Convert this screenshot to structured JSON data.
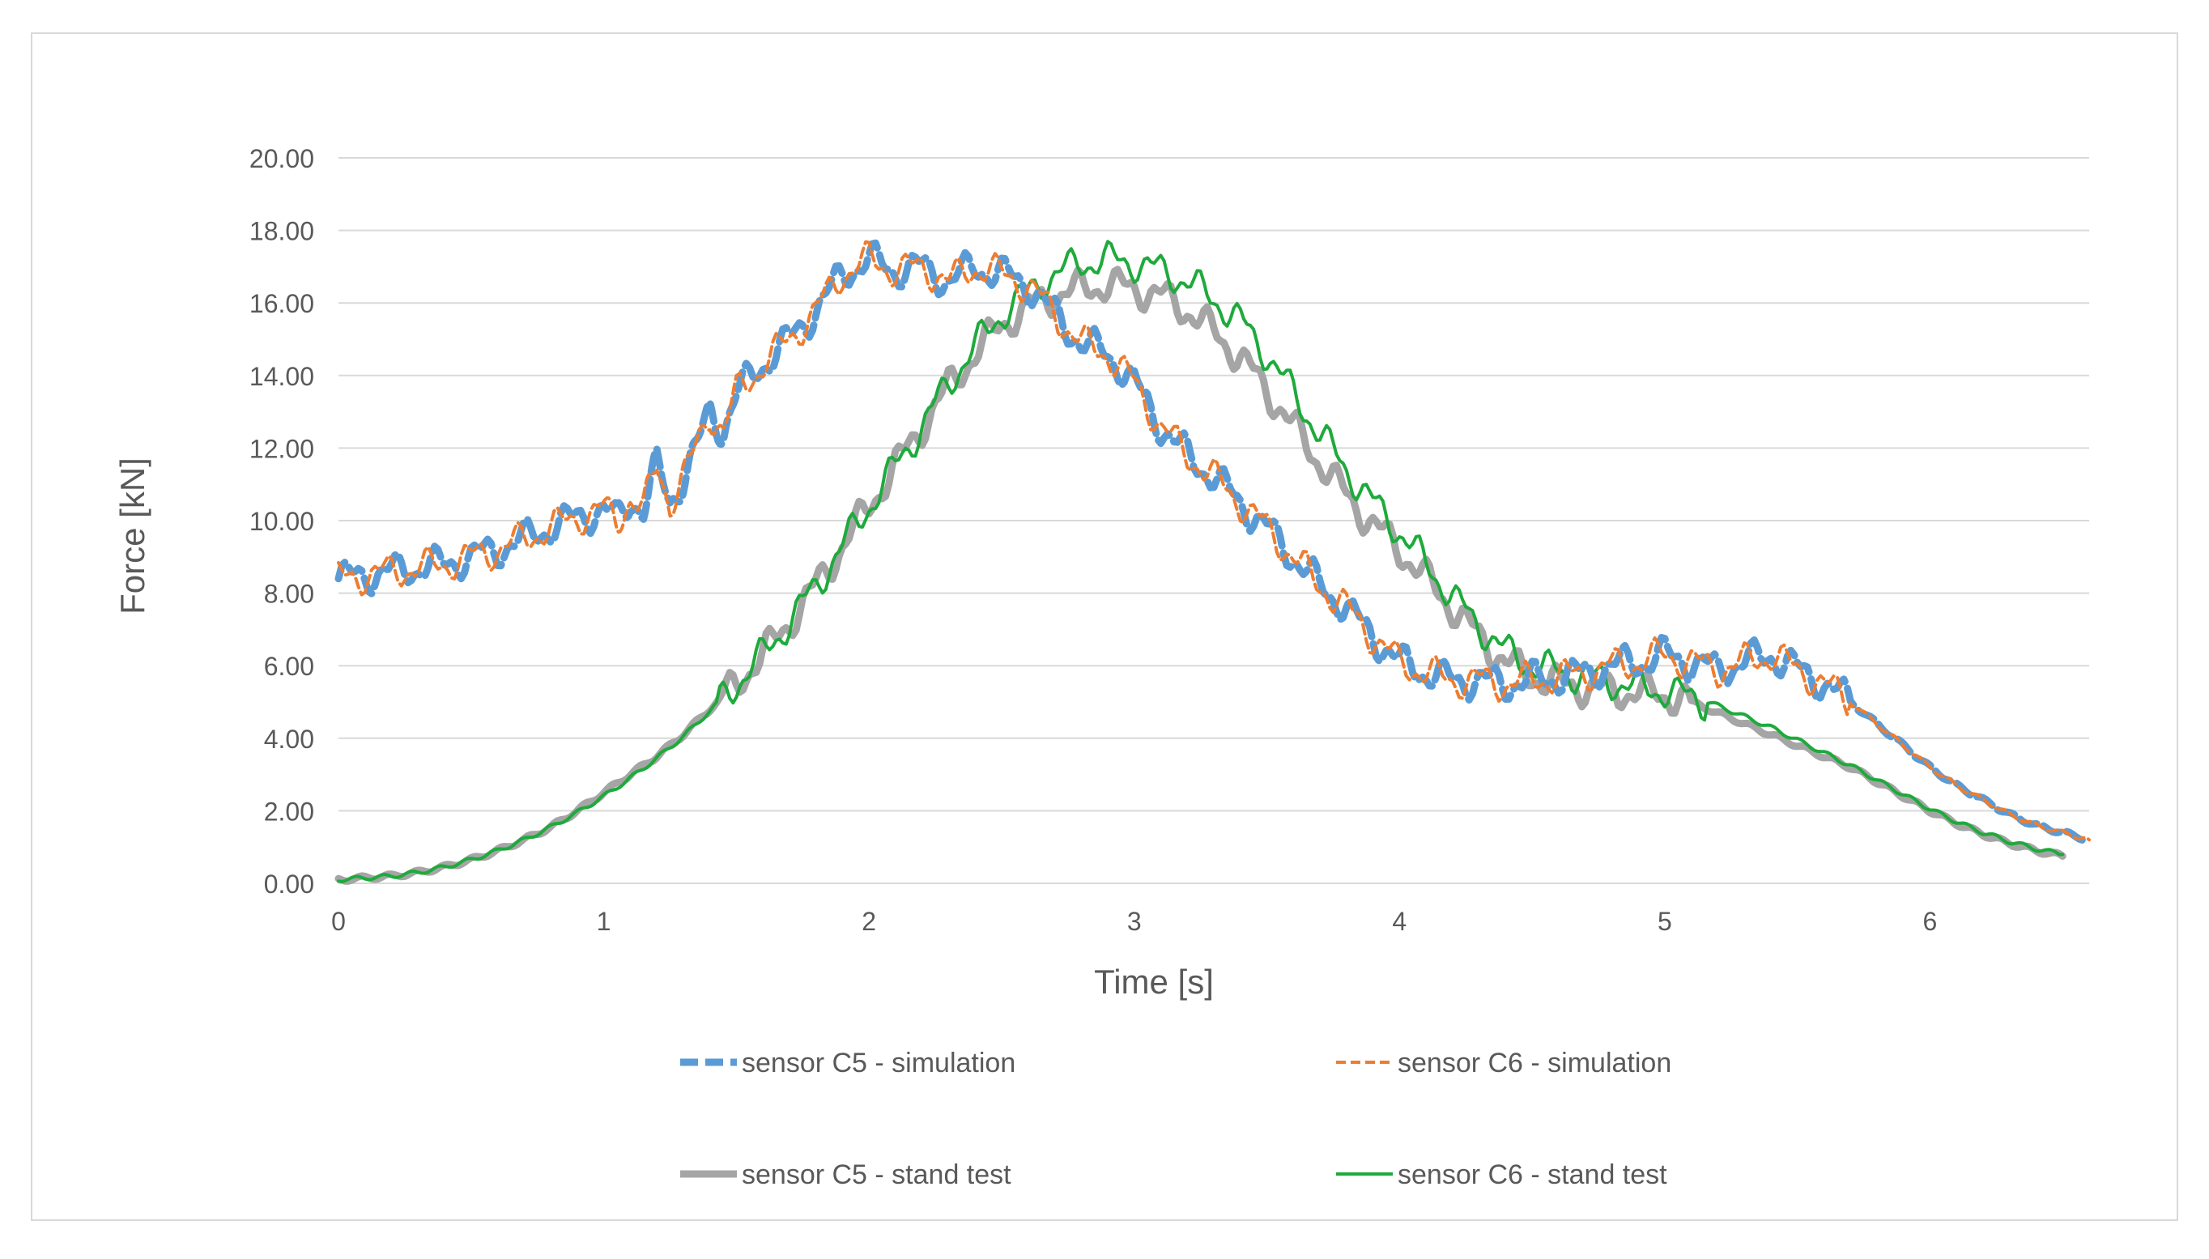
{
  "chart_data": {
    "type": "line",
    "title": "",
    "xlabel": "Time [s]",
    "ylabel": "Force [kN]",
    "xlim": [
      0,
      6.6
    ],
    "ylim": [
      0,
      20
    ],
    "x_ticks": [
      "0",
      "1",
      "2",
      "3",
      "4",
      "5",
      "6"
    ],
    "y_ticks": [
      "0.00",
      "2.00",
      "4.00",
      "6.00",
      "8.00",
      "10.00",
      "12.00",
      "14.00",
      "16.00",
      "18.00",
      "20.00"
    ],
    "grid": "horizontal",
    "legend_position": "bottom",
    "series": [
      {
        "name": "sensor C5 - simulation",
        "color": "#5B9BD5",
        "style": "dashed-thick",
        "x": [
          0,
          0.1,
          0.2,
          0.3,
          0.4,
          0.5,
          0.6,
          0.7,
          0.8,
          0.9,
          1.0,
          1.05,
          1.1,
          1.15,
          1.2,
          1.25,
          1.3,
          1.35,
          1.4,
          1.45,
          1.5,
          1.6,
          1.7,
          1.8,
          1.9,
          2.0,
          2.1,
          2.2,
          2.3,
          2.4,
          2.5,
          2.6,
          2.7,
          2.8,
          2.9,
          3.0,
          3.1,
          3.2,
          3.3,
          3.4,
          3.5,
          3.6,
          3.7,
          3.8,
          3.9,
          4.0,
          4.1,
          4.2,
          4.3,
          4.4,
          4.5,
          4.6,
          4.7,
          4.8,
          4.9,
          5.0,
          5.1,
          5.2,
          5.3,
          5.4,
          5.5,
          5.6,
          5.7,
          5.8,
          5.9,
          6.0,
          6.1,
          6.2,
          6.3,
          6.4,
          6.5,
          6.6
        ],
        "y": [
          8.4,
          8.5,
          8.6,
          8.7,
          8.8,
          9.0,
          9.2,
          9.5,
          9.8,
          10.1,
          10.3,
          10.0,
          10.6,
          10.3,
          11.5,
          10.5,
          11.2,
          12.0,
          13.0,
          12.5,
          13.5,
          14.3,
          15.0,
          15.8,
          16.8,
          17.2,
          16.9,
          17.0,
          16.6,
          17.0,
          16.8,
          16.5,
          15.7,
          14.9,
          14.6,
          13.8,
          12.6,
          11.8,
          11.2,
          10.5,
          9.8,
          9.0,
          8.2,
          7.6,
          6.8,
          6.1,
          5.8,
          5.6,
          5.6,
          5.5,
          5.6,
          5.7,
          5.8,
          6.0,
          6.1,
          6.3,
          6.1,
          5.9,
          6.1,
          6.3,
          5.9,
          5.5,
          5.0,
          4.4,
          3.8,
          3.2,
          2.7,
          2.3,
          1.9,
          1.6,
          1.4,
          1.2
        ]
      },
      {
        "name": "sensor C6 - simulation",
        "color": "#ED7D31",
        "style": "dashed",
        "x": [
          0,
          0.1,
          0.2,
          0.3,
          0.4,
          0.5,
          0.6,
          0.7,
          0.8,
          0.9,
          1.0,
          1.05,
          1.1,
          1.15,
          1.2,
          1.25,
          1.3,
          1.35,
          1.4,
          1.45,
          1.5,
          1.6,
          1.7,
          1.8,
          1.9,
          2.0,
          2.1,
          2.2,
          2.3,
          2.4,
          2.5,
          2.6,
          2.7,
          2.8,
          2.9,
          3.0,
          3.1,
          3.2,
          3.3,
          3.4,
          3.5,
          3.6,
          3.7,
          3.8,
          3.9,
          4.0,
          4.1,
          4.2,
          4.3,
          4.4,
          4.5,
          4.6,
          4.7,
          4.8,
          4.9,
          5.0,
          5.1,
          5.2,
          5.3,
          5.4,
          5.5,
          5.6,
          5.7,
          5.8,
          5.9,
          6.0,
          6.1,
          6.2,
          6.3,
          6.4,
          6.5,
          6.6
        ],
        "y": [
          8.4,
          8.5,
          8.6,
          8.7,
          8.8,
          9.0,
          9.2,
          9.5,
          9.8,
          10.1,
          10.3,
          10.0,
          10.6,
          10.3,
          11.5,
          10.5,
          11.2,
          12.0,
          13.0,
          12.5,
          13.5,
          14.3,
          15.0,
          15.8,
          16.8,
          17.2,
          16.9,
          17.0,
          16.6,
          17.0,
          16.8,
          16.5,
          15.7,
          14.9,
          14.6,
          13.8,
          12.6,
          11.8,
          11.2,
          10.5,
          9.8,
          9.0,
          8.2,
          7.6,
          6.8,
          6.1,
          5.8,
          5.6,
          5.6,
          5.5,
          5.6,
          5.7,
          5.8,
          6.0,
          6.1,
          6.3,
          6.1,
          5.9,
          6.1,
          6.3,
          5.9,
          5.5,
          5.0,
          4.4,
          3.8,
          3.2,
          2.7,
          2.3,
          1.9,
          1.6,
          1.4,
          1.2
        ]
      },
      {
        "name": "sensor C5 - stand test",
        "color": "#A5A5A5",
        "style": "solid-thick",
        "x": [
          0,
          0.1,
          0.2,
          0.3,
          0.4,
          0.5,
          0.6,
          0.7,
          0.8,
          0.9,
          1.0,
          1.1,
          1.2,
          1.3,
          1.4,
          1.5,
          1.6,
          1.7,
          1.8,
          1.9,
          2.0,
          2.1,
          2.2,
          2.3,
          2.4,
          2.5,
          2.6,
          2.7,
          2.8,
          2.9,
          3.0,
          3.1,
          3.2,
          3.3,
          3.4,
          3.5,
          3.6,
          3.7,
          3.8,
          3.9,
          4.0,
          4.1,
          4.2,
          4.3,
          4.4,
          4.5,
          4.6,
          4.7,
          4.8,
          4.9,
          5.0,
          5.1,
          5.2,
          5.3,
          5.4,
          5.5,
          5.6,
          5.7,
          5.8,
          5.9,
          6.0,
          6.1,
          6.2,
          6.3,
          6.4,
          6.5
        ],
        "y": [
          0.1,
          0.15,
          0.2,
          0.3,
          0.45,
          0.65,
          0.9,
          1.2,
          1.55,
          2.0,
          2.5,
          3.0,
          3.5,
          4.1,
          4.8,
          5.5,
          6.3,
          7.2,
          8.2,
          9.3,
          10.4,
          11.5,
          12.6,
          13.7,
          14.6,
          15.4,
          15.9,
          16.2,
          16.4,
          16.5,
          16.4,
          16.2,
          15.8,
          15.2,
          14.5,
          13.6,
          12.6,
          11.6,
          10.7,
          9.9,
          9.2,
          8.4,
          7.6,
          6.8,
          6.1,
          5.7,
          5.5,
          5.4,
          5.3,
          5.25,
          5.2,
          5.0,
          4.7,
          4.4,
          4.1,
          3.8,
          3.5,
          3.2,
          2.8,
          2.4,
          2.0,
          1.65,
          1.35,
          1.1,
          0.9,
          0.75
        ]
      },
      {
        "name": "sensor C6 - stand test",
        "color": "#1EAA3C",
        "style": "solid",
        "x": [
          0,
          0.1,
          0.2,
          0.3,
          0.4,
          0.5,
          0.6,
          0.7,
          0.8,
          0.9,
          1.0,
          1.1,
          1.2,
          1.3,
          1.4,
          1.5,
          1.6,
          1.7,
          1.8,
          1.9,
          2.0,
          2.1,
          2.2,
          2.3,
          2.4,
          2.5,
          2.6,
          2.7,
          2.8,
          2.9,
          3.0,
          3.1,
          3.2,
          3.3,
          3.4,
          3.5,
          3.6,
          3.7,
          3.8,
          3.9,
          4.0,
          4.1,
          4.2,
          4.3,
          4.4,
          4.5,
          4.6,
          4.7,
          4.8,
          4.9,
          5.0,
          5.1,
          5.2,
          5.3,
          5.4,
          5.5,
          5.6,
          5.7,
          5.8,
          5.9,
          6.0,
          6.1,
          6.2,
          6.3,
          6.4,
          6.5
        ],
        "y": [
          0.1,
          0.15,
          0.2,
          0.3,
          0.45,
          0.65,
          0.9,
          1.2,
          1.55,
          1.95,
          2.4,
          2.9,
          3.45,
          4.05,
          4.75,
          5.5,
          6.3,
          7.2,
          8.2,
          9.3,
          10.4,
          11.5,
          12.6,
          13.8,
          14.8,
          15.7,
          16.3,
          16.8,
          17.1,
          17.2,
          17.1,
          16.9,
          16.6,
          16.1,
          15.5,
          14.6,
          13.5,
          12.4,
          11.4,
          10.5,
          9.7,
          8.8,
          7.9,
          7.1,
          6.4,
          6.0,
          5.85,
          5.7,
          5.55,
          5.4,
          5.3,
          5.15,
          4.9,
          4.6,
          4.3,
          3.95,
          3.6,
          3.25,
          2.85,
          2.45,
          2.05,
          1.7,
          1.4,
          1.15,
          0.95,
          0.8
        ]
      }
    ]
  }
}
